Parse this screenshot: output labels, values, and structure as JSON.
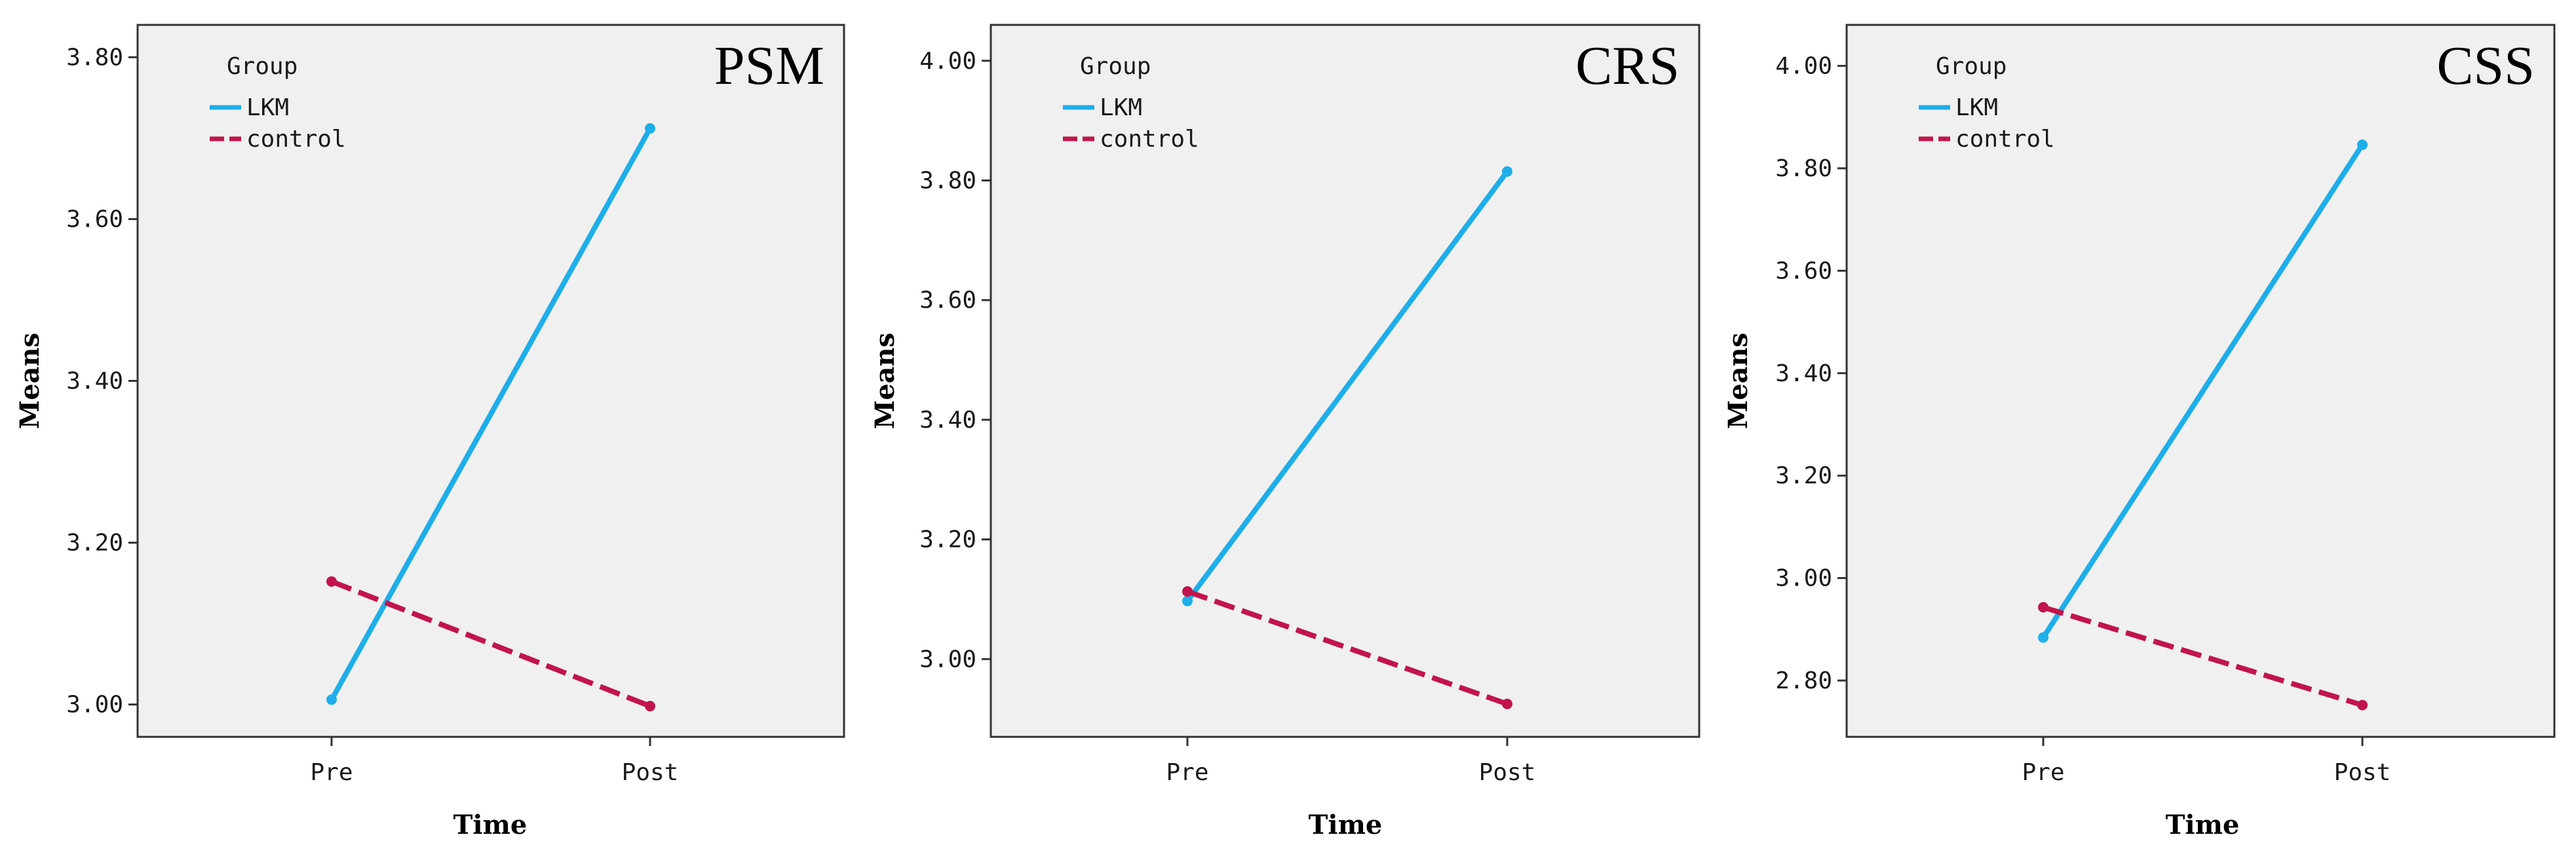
{
  "colors": {
    "plot_bg": "#f0f0f0",
    "lkm": "#1eaeea",
    "control": "#c2144c",
    "axis": "#333333"
  },
  "chart_data": [
    {
      "type": "line",
      "title": "PSM",
      "xlabel": "Time",
      "ylabel": "Means",
      "categories": [
        "Pre",
        "Post"
      ],
      "ylim": [
        2.96,
        3.84
      ],
      "yticks": [
        3.0,
        3.2,
        3.4,
        3.6,
        3.8
      ],
      "ytick_labels": [
        "3.00",
        "3.20",
        "3.40",
        "3.60",
        "3.80"
      ],
      "legend_title": "Group",
      "legend_position": "top-left",
      "series": [
        {
          "name": "LKM",
          "values": [
            3.006,
            3.712
          ],
          "style": "solid"
        },
        {
          "name": "control",
          "values": [
            3.152,
            2.998
          ],
          "style": "dashed"
        }
      ]
    },
    {
      "type": "line",
      "title": "CRS",
      "xlabel": "Time",
      "ylabel": "Means",
      "categories": [
        "Pre",
        "Post"
      ],
      "ylim": [
        2.87,
        4.06
      ],
      "yticks": [
        3.0,
        3.2,
        3.4,
        3.6,
        3.8,
        4.0
      ],
      "ytick_labels": [
        "3.00",
        "3.20",
        "3.40",
        "3.60",
        "3.80",
        "4.00"
      ],
      "legend_title": "Group",
      "legend_position": "top-left",
      "series": [
        {
          "name": "LKM",
          "values": [
            3.097,
            3.815
          ],
          "style": "solid"
        },
        {
          "name": "control",
          "values": [
            3.113,
            2.925
          ],
          "style": "dashed"
        }
      ]
    },
    {
      "type": "line",
      "title": "CSS",
      "xlabel": "Time",
      "ylabel": "Means",
      "categories": [
        "Pre",
        "Post"
      ],
      "ylim": [
        2.69,
        4.08
      ],
      "yticks": [
        2.8,
        3.0,
        3.2,
        3.4,
        3.6,
        3.8,
        4.0
      ],
      "ytick_labels": [
        "2.80",
        "3.00",
        "3.20",
        "3.40",
        "3.60",
        "3.80",
        "4.00"
      ],
      "legend_title": "Group",
      "legend_position": "top-left",
      "series": [
        {
          "name": "LKM",
          "values": [
            2.884,
            3.846
          ],
          "style": "solid"
        },
        {
          "name": "control",
          "values": [
            2.943,
            2.752
          ],
          "style": "dashed"
        }
      ]
    }
  ]
}
